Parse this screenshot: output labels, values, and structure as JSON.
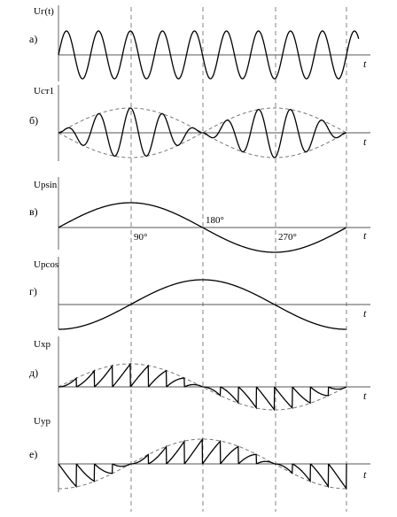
{
  "panels": [
    {
      "id": "a",
      "label": "а)",
      "ylabel": "Uг(t)",
      "kind": "carrier"
    },
    {
      "id": "b",
      "label": "б)",
      "ylabel": "Uст1",
      "kind": "modulated"
    },
    {
      "id": "v",
      "label": "в)",
      "ylabel": "Upsin",
      "kind": "sin"
    },
    {
      "id": "g",
      "label": "г)",
      "ylabel": "Upcos",
      "kind": "cos"
    },
    {
      "id": "d",
      "label": "д)",
      "ylabel": "Uxp",
      "kind": "saw_sin"
    },
    {
      "id": "e",
      "label": "е)",
      "ylabel": "Uyp",
      "kind": "saw_cos"
    }
  ],
  "t_label": "t",
  "angle_ticks": [
    {
      "deg": 90,
      "label": "90°"
    },
    {
      "deg": 180,
      "label": "180°"
    },
    {
      "deg": 270,
      "label": "270°"
    }
  ],
  "carrier_cycles": 9,
  "sawtooth_teeth_per_cycle": 16,
  "colors": {
    "curve": "#000000",
    "axis": "#555555",
    "dashed": "#777777"
  }
}
